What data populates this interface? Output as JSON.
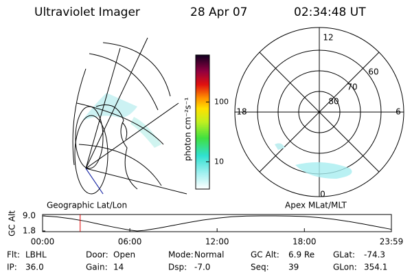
{
  "header": {
    "title": "Ultraviolet Imager",
    "date": "28 Apr 07",
    "time": "02:34:48 UT"
  },
  "map": {
    "label": "Geographic Lat/Lon"
  },
  "polar": {
    "label": "Apex MLat/MLT",
    "hours": [
      "12",
      "18",
      "6",
      "0"
    ],
    "latitudes": [
      "80",
      "70",
      "60"
    ]
  },
  "colorbar": {
    "label": "photon cm⁻²s⁻¹",
    "scale": "log",
    "lim": [
      3.5,
      610
    ],
    "ticks": [
      10,
      100
    ]
  },
  "plot": {
    "ylabel": "GC Alt",
    "ylim": [
      1.8,
      9.0
    ],
    "yticks": [
      1.8,
      {
        "value": 9.0,
        "label": "9.0"
      }
    ],
    "xlim": [
      0,
      1439
    ],
    "xticks": [
      {
        "value": 0,
        "label": "00:00"
      },
      {
        "value": 360,
        "label": "06:00"
      },
      {
        "value": 720,
        "label": "12:00"
      },
      {
        "value": 1080,
        "label": "18:00"
      },
      {
        "value": 1439,
        "label": "23:59"
      }
    ],
    "x": [
      0,
      60,
      120,
      180,
      240,
      300,
      360,
      390,
      420,
      480,
      540,
      600,
      660,
      720,
      780,
      840,
      900,
      960,
      1020,
      1080,
      1140,
      1200,
      1260,
      1320,
      1380,
      1439
    ],
    "values": [
      9.0,
      8.5,
      7.6,
      6.4,
      4.9,
      3.5,
      2.2,
      1.8,
      2.1,
      3.2,
      4.5,
      5.8,
      7.0,
      7.9,
      8.6,
      8.9,
      9.0,
      9.0,
      8.9,
      8.7,
      8.2,
      7.4,
      6.4,
      5.2,
      3.9,
      2.6
    ],
    "color": "#000000",
    "marker": 155,
    "marker_color": "#e00000"
  },
  "footer": [
    [
      [
        "Flt:",
        "LBHL"
      ],
      [
        "Door:",
        "Open"
      ],
      [
        "Mode:",
        "Normal"
      ],
      [
        "GC Alt:",
        "6.9 Re"
      ],
      [
        "GLat:",
        "-74.3"
      ]
    ],
    [
      [
        "IP:",
        "36.0"
      ],
      [
        "Gain:",
        "14"
      ],
      [
        "Dsp:",
        "-7.0"
      ],
      [
        "Seq:",
        "39"
      ],
      [
        "GLon:",
        "354.1"
      ]
    ]
  ]
}
